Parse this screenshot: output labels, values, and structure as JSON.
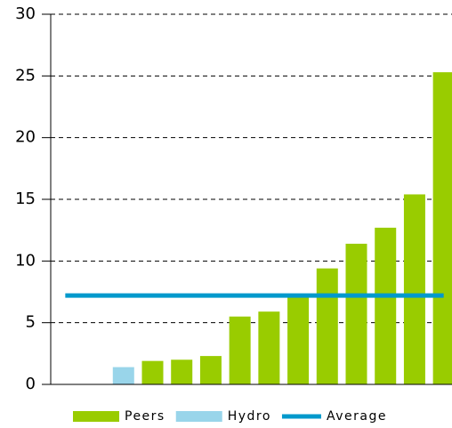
{
  "chart_data": {
    "type": "bar",
    "categories": [
      null,
      null,
      null,
      null,
      null,
      null,
      null,
      null,
      null,
      null,
      null,
      null,
      null,
      null
    ],
    "series": [
      {
        "name": "Peers",
        "color": "#99cc00",
        "values": [
          null,
          null,
          null,
          1.9,
          2.0,
          2.3,
          5.5,
          5.9,
          7.2,
          9.4,
          11.4,
          12.7,
          15.4,
          25.3
        ]
      },
      {
        "name": "Hydro",
        "color": "#99d5ea",
        "values": [
          null,
          null,
          1.4,
          null,
          null,
          null,
          null,
          null,
          null,
          null,
          null,
          null,
          null,
          null
        ]
      },
      {
        "name": "Average",
        "color": "#0099cc",
        "type": "line",
        "values": [
          7.2,
          7.2,
          7.2,
          7.2,
          7.2,
          7.2,
          7.2,
          7.2,
          7.2,
          7.2,
          7.2,
          7.2,
          7.2,
          7.2
        ]
      }
    ],
    "ylim": [
      0,
      30
    ],
    "yticks": [
      0,
      5,
      10,
      15,
      20,
      25,
      30
    ],
    "grid": true,
    "legend": "bottom"
  }
}
